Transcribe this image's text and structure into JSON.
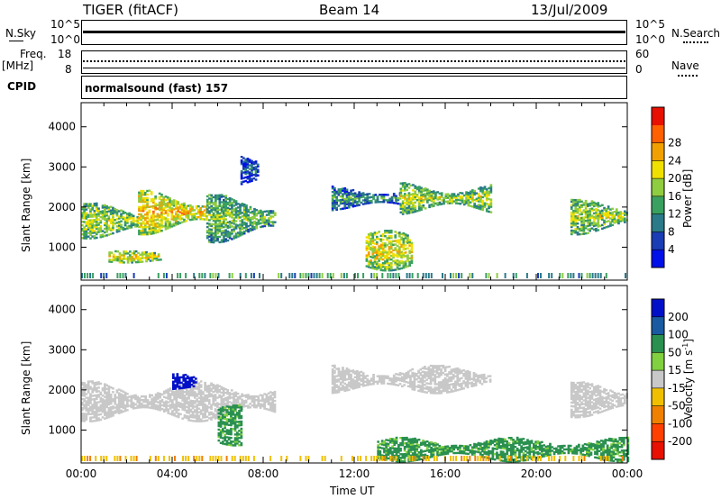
{
  "header": {
    "radar": "TIGER (fitACF)",
    "beam": "Beam 14",
    "date": "13/Jul/2009"
  },
  "status_panels": {
    "nsky_label": "N.Sky",
    "nsky_top": "10^5",
    "nsky_bottom": "10^0",
    "nsearch_label": "N.Search",
    "nsearch_top": "10^5",
    "nsearch_bottom": "10^0",
    "freq_label": "Freq.",
    "freq_unit": "[MHz]",
    "freq_top": "18",
    "freq_bottom": "8",
    "nave_label": "Nave",
    "nave_top": "60",
    "nave_bottom": "0",
    "cpid_label": "CPID",
    "cpid_text": "normalsound (fast) 157"
  },
  "chart_data": [
    {
      "type": "heatmap",
      "quantity": "Power",
      "ylabel": "Slant Range [km]",
      "ylim": [
        180,
        4600
      ],
      "yticks": [
        1000,
        2000,
        3000,
        4000
      ],
      "xlim": [
        0,
        24
      ],
      "colorbar": {
        "label": "Power [dB]",
        "range": [
          0,
          32
        ],
        "ticks": [
          "4",
          "8",
          "12",
          "16",
          "20",
          "24",
          "28"
        ],
        "colors": [
          "#0010e8",
          "#1a3cb4",
          "#2a7a8a",
          "#3aa060",
          "#90cc40",
          "#f0e000",
          "#f0a000",
          "#ff6000",
          "#e81000"
        ]
      },
      "echo_regions": [
        {
          "t0": 0.0,
          "t1": 2.5,
          "r0": 1200,
          "r1": 2100,
          "level": 18
        },
        {
          "t0": 2.5,
          "t1": 5.5,
          "r0": 1300,
          "r1": 2400,
          "level": 22
        },
        {
          "t0": 5.5,
          "t1": 8.5,
          "r0": 1100,
          "r1": 2300,
          "level": 16
        },
        {
          "t0": 1.2,
          "t1": 3.5,
          "r0": 600,
          "r1": 900,
          "level": 20
        },
        {
          "t0": 7.0,
          "t1": 7.8,
          "r0": 2500,
          "r1": 3300,
          "level": 8
        },
        {
          "t0": 11.0,
          "t1": 14.0,
          "r0": 1900,
          "r1": 2500,
          "level": 12
        },
        {
          "t0": 14.0,
          "t1": 18.0,
          "r0": 1800,
          "r1": 2600,
          "level": 18
        },
        {
          "t0": 12.5,
          "t1": 14.5,
          "r0": 400,
          "r1": 1400,
          "level": 20
        },
        {
          "t0": 21.5,
          "t1": 24.0,
          "r0": 1300,
          "r1": 2200,
          "level": 18
        }
      ]
    },
    {
      "type": "heatmap",
      "quantity": "Velocity",
      "ylabel": "Slant Range [km]",
      "xlabel": "Time UT",
      "ylim": [
        180,
        4600
      ],
      "yticks": [
        1000,
        2000,
        3000,
        4000
      ],
      "xlim": [
        0,
        24
      ],
      "xticks": [
        "00:00",
        "04:00",
        "08:00",
        "12:00",
        "16:00",
        "20:00",
        "00:00"
      ],
      "colorbar": {
        "label": "Velocity [m s",
        "label_exponent": "-1",
        "label_end": "]",
        "ticks": [
          "200",
          "100",
          "50",
          "15",
          "-15",
          "-50",
          "-100",
          "-200"
        ],
        "colors": [
          "#0010c8",
          "#1a5aa0",
          "#2a9050",
          "#80d040",
          "#c8c8c8",
          "#f0c000",
          "#f08000",
          "#ff4000",
          "#e81000"
        ]
      },
      "echo_regions": [
        {
          "t0": 0.0,
          "t1": 8.5,
          "r0": 1200,
          "r1": 2200,
          "level": 0
        },
        {
          "t0": 4.0,
          "t1": 5.0,
          "r0": 2000,
          "r1": 2400,
          "level": 180
        },
        {
          "t0": 6.0,
          "t1": 7.0,
          "r0": 600,
          "r1": 1600,
          "level": 40
        },
        {
          "t0": 11.0,
          "t1": 18.0,
          "r0": 1900,
          "r1": 2600,
          "level": 0
        },
        {
          "t0": 13.0,
          "t1": 24.0,
          "r0": 200,
          "r1": 800,
          "level": 40
        },
        {
          "t0": 21.5,
          "t1": 24.0,
          "r0": 1300,
          "r1": 2200,
          "level": 0
        }
      ]
    }
  ]
}
